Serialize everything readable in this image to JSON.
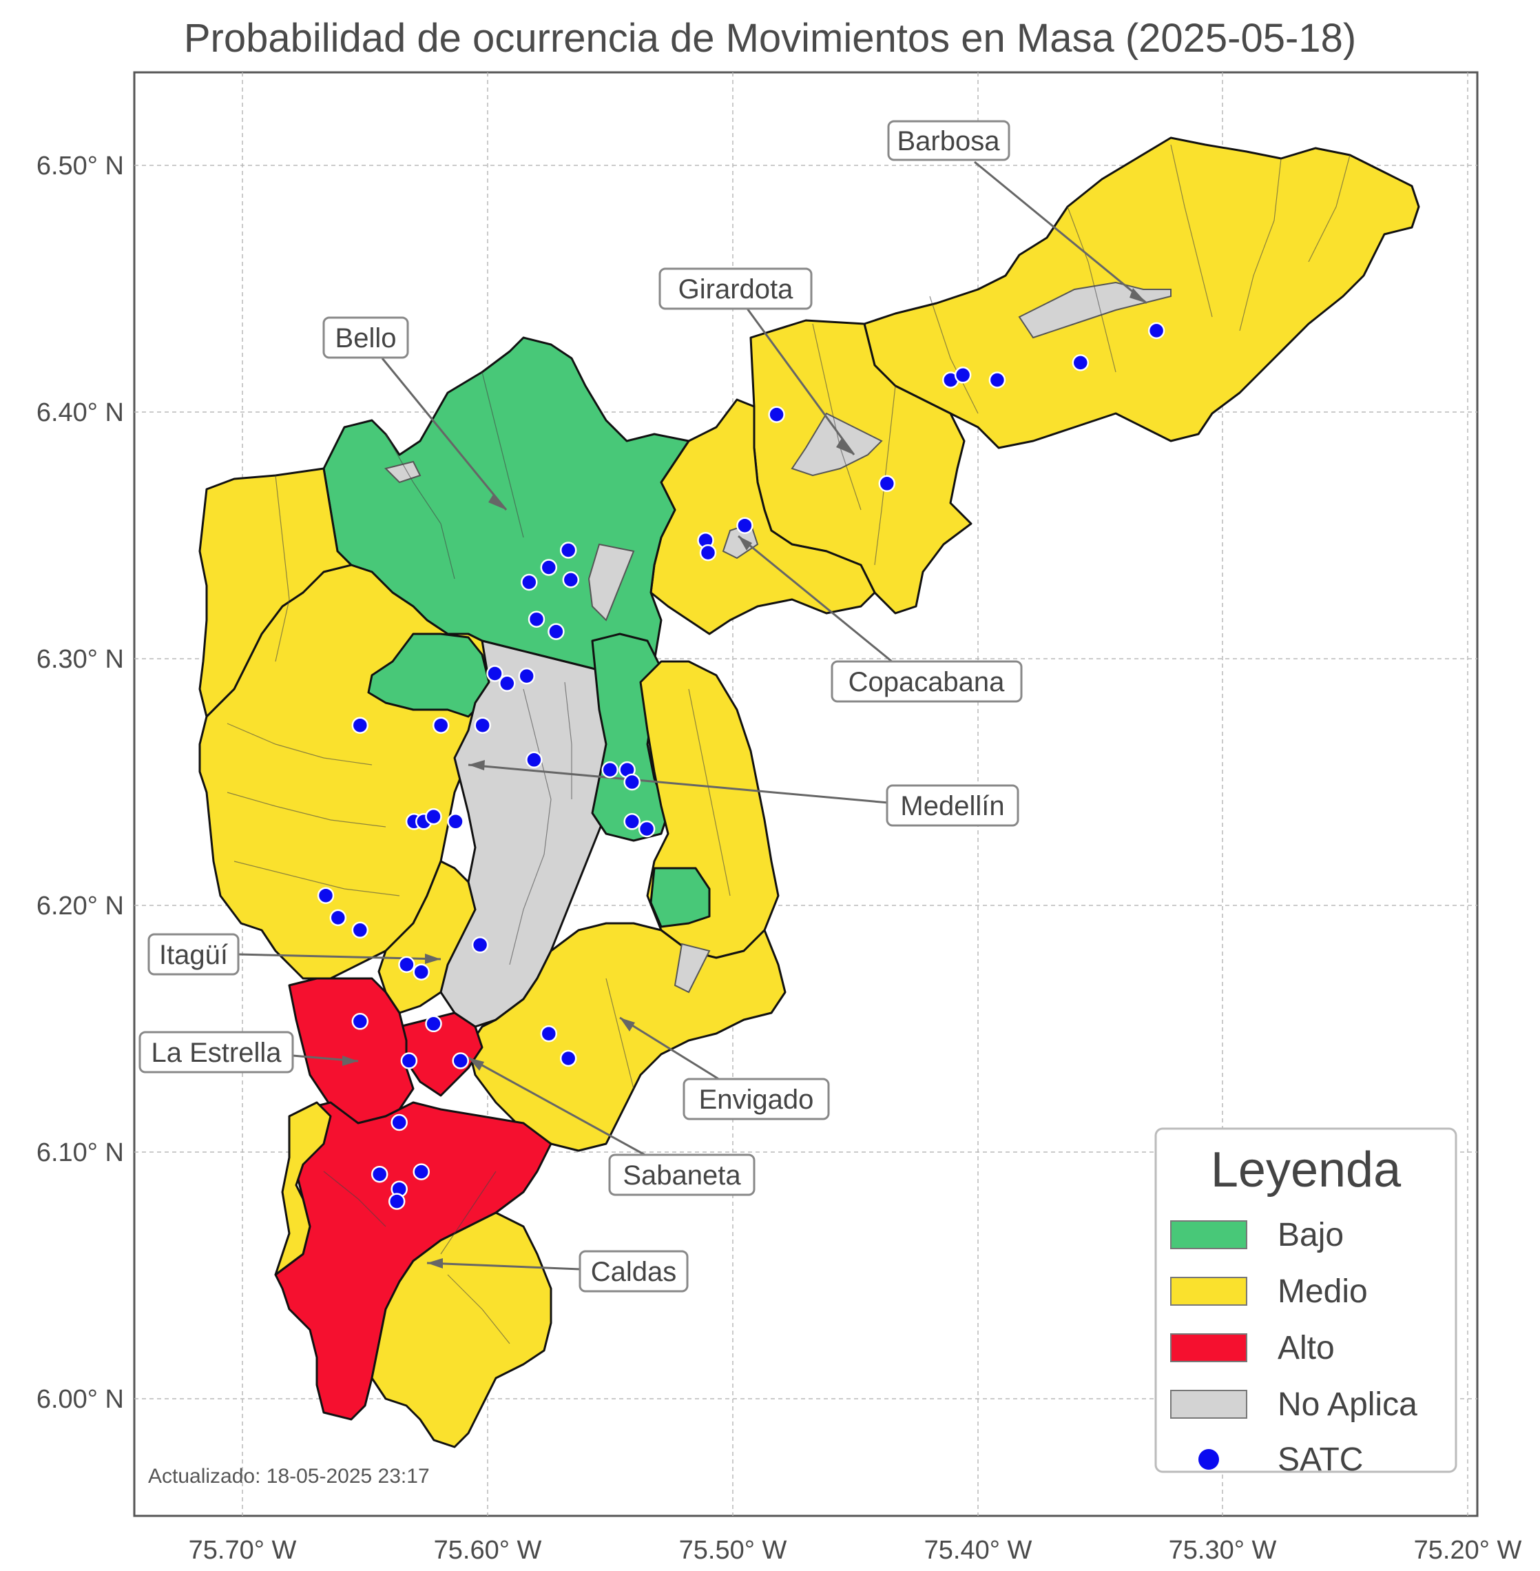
{
  "title": "Probabilidad de ocurrencia de Movimientos en Masa (2025-05-18)",
  "updated": "Actualizado: 18-05-2025 23:17",
  "axes": {
    "x_ticks": [
      "75.70° W",
      "75.60° W",
      "75.50° W",
      "75.40° W",
      "75.30° W",
      "75.20° W"
    ],
    "y_ticks": [
      "6.50° N",
      "6.40° N",
      "6.30° N",
      "6.20° N",
      "6.10° N",
      "6.00° N"
    ],
    "grid": true
  },
  "municipalities": [
    {
      "name": "Barbosa",
      "category": "Medio"
    },
    {
      "name": "Girardota",
      "category": "Medio"
    },
    {
      "name": "Bello",
      "category": "Bajo"
    },
    {
      "name": "Copacabana",
      "category": "Medio"
    },
    {
      "name": "Medellín",
      "category": "No Aplica"
    },
    {
      "name": "Itagüí",
      "category": "Medio"
    },
    {
      "name": "La Estrella",
      "category": "Alto"
    },
    {
      "name": "Envigado",
      "category": "Medio"
    },
    {
      "name": "Sabaneta",
      "category": "Alto"
    },
    {
      "name": "Caldas",
      "category": "Alto"
    }
  ],
  "legend": {
    "title": "Leyenda",
    "items": [
      {
        "label": "Bajo",
        "color": "#48c878"
      },
      {
        "label": "Medio",
        "color": "#fae12d"
      },
      {
        "label": "Alto",
        "color": "#f5102f"
      },
      {
        "label": "No Aplica",
        "color": "#d3d3d3"
      },
      {
        "label": "SATC",
        "color": "#0a0af0"
      }
    ]
  },
  "satc_stations": [
    {
      "lon": -75.482,
      "lat": 6.399
    },
    {
      "lon": -75.437,
      "lat": 6.371
    },
    {
      "lon": -75.411,
      "lat": 6.413
    },
    {
      "lon": -75.406,
      "lat": 6.415
    },
    {
      "lon": -75.392,
      "lat": 6.413
    },
    {
      "lon": -75.358,
      "lat": 6.42
    },
    {
      "lon": -75.327,
      "lat": 6.433
    },
    {
      "lon": -75.511,
      "lat": 6.348
    },
    {
      "lon": -75.51,
      "lat": 6.343
    },
    {
      "lon": -75.495,
      "lat": 6.354
    },
    {
      "lon": -75.567,
      "lat": 6.344
    },
    {
      "lon": -75.575,
      "lat": 6.337
    },
    {
      "lon": -75.566,
      "lat": 6.332
    },
    {
      "lon": -75.583,
      "lat": 6.331
    },
    {
      "lon": -75.58,
      "lat": 6.316
    },
    {
      "lon": -75.572,
      "lat": 6.311
    },
    {
      "lon": -75.597,
      "lat": 6.294
    },
    {
      "lon": -75.592,
      "lat": 6.29
    },
    {
      "lon": -75.584,
      "lat": 6.293
    },
    {
      "lon": -75.652,
      "lat": 6.273
    },
    {
      "lon": -75.619,
      "lat": 6.273
    },
    {
      "lon": -75.602,
      "lat": 6.273
    },
    {
      "lon": -75.581,
      "lat": 6.259
    },
    {
      "lon": -75.55,
      "lat": 6.255
    },
    {
      "lon": -75.543,
      "lat": 6.255
    },
    {
      "lon": -75.541,
      "lat": 6.25
    },
    {
      "lon": -75.541,
      "lat": 6.234
    },
    {
      "lon": -75.535,
      "lat": 6.231
    },
    {
      "lon": -75.63,
      "lat": 6.234
    },
    {
      "lon": -75.626,
      "lat": 6.234
    },
    {
      "lon": -75.622,
      "lat": 6.236
    },
    {
      "lon": -75.613,
      "lat": 6.234
    },
    {
      "lon": -75.666,
      "lat": 6.204
    },
    {
      "lon": -75.661,
      "lat": 6.195
    },
    {
      "lon": -75.652,
      "lat": 6.19
    },
    {
      "lon": -75.603,
      "lat": 6.184
    },
    {
      "lon": -75.633,
      "lat": 6.176
    },
    {
      "lon": -75.627,
      "lat": 6.173
    },
    {
      "lon": -75.652,
      "lat": 6.153
    },
    {
      "lon": -75.622,
      "lat": 6.152
    },
    {
      "lon": -75.632,
      "lat": 6.137
    },
    {
      "lon": -75.611,
      "lat": 6.137
    },
    {
      "lon": -75.575,
      "lat": 6.148
    },
    {
      "lon": -75.567,
      "lat": 6.138
    },
    {
      "lon": -75.636,
      "lat": 6.112
    },
    {
      "lon": -75.644,
      "lat": 6.091
    },
    {
      "lon": -75.627,
      "lat": 6.092
    },
    {
      "lon": -75.636,
      "lat": 6.085
    },
    {
      "lon": -75.637,
      "lat": 6.08
    }
  ]
}
